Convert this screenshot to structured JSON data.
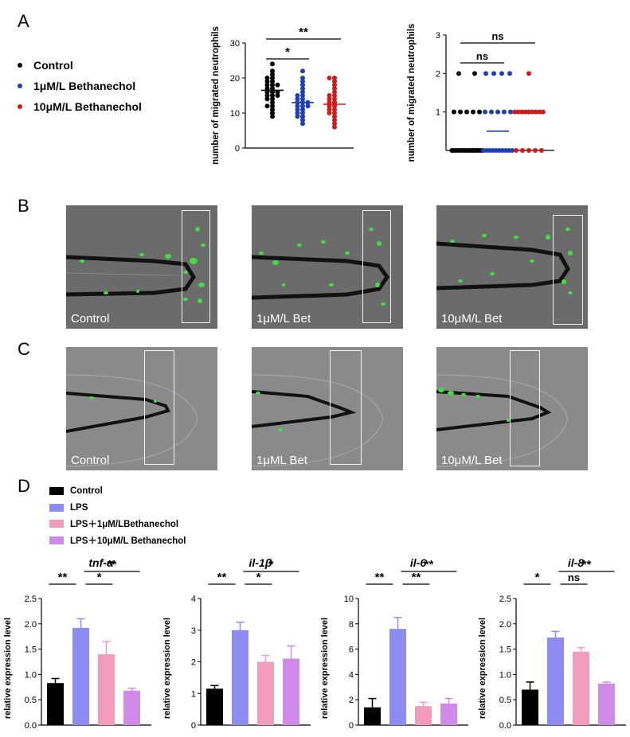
{
  "panels": {
    "a": "A",
    "b": "B",
    "c": "C",
    "d": "D"
  },
  "legend_a": [
    {
      "label": "Control",
      "color": "#000000"
    },
    {
      "label": "1μM/L Bethanechol",
      "color": "#1f3fb5"
    },
    {
      "label": "10μM/L Bethanechol",
      "color": "#d21818"
    }
  ],
  "legend_d": [
    {
      "label": "Control",
      "color": "#000000"
    },
    {
      "label": "LPS",
      "color": "#8c8cf2"
    },
    {
      "label": "LPS＋1μM/LBethanechol",
      "color": "#f29bbb"
    },
    {
      "label": "LPS＋10μM/L Bethanechol",
      "color": "#d08ae8"
    }
  ],
  "micro_b": [
    "Control",
    "1μM/L Bet",
    "10μM/L Bet"
  ],
  "micro_c": [
    "Control",
    "1μML Bet",
    "10μM/L Bet"
  ],
  "chart_data": [
    {
      "type": "scatter",
      "ylabel": "number of migrated neutrophils",
      "ylim": [
        0,
        30
      ],
      "yticks": [
        0,
        10,
        20,
        30
      ],
      "groups": [
        {
          "color": "#000000",
          "mean": 16.5,
          "values": [
            24,
            22,
            21,
            20,
            20,
            19,
            19,
            18,
            18,
            18,
            17,
            17,
            16,
            16,
            16,
            15,
            15,
            15,
            14,
            14,
            13,
            12,
            12,
            11,
            10,
            9
          ]
        },
        {
          "color": "#1f3fb5",
          "mean": 13,
          "values": [
            22,
            20,
            19,
            18,
            17,
            16,
            15,
            15,
            14,
            14,
            13,
            13,
            13,
            12,
            12,
            12,
            11,
            11,
            10,
            10,
            9,
            9,
            8,
            7
          ]
        },
        {
          "color": "#d21818",
          "mean": 12.5,
          "values": [
            20,
            20,
            19,
            18,
            17,
            16,
            15,
            15,
            14,
            14,
            13,
            13,
            12,
            12,
            11,
            11,
            10,
            10,
            9,
            8,
            7,
            6
          ]
        }
      ],
      "annotations": [
        {
          "text": "*",
          "from": 0,
          "to": 1
        },
        {
          "text": "**",
          "from": 0,
          "to": 2
        }
      ]
    },
    {
      "type": "scatter",
      "ylabel": "number of migrated neutrophils",
      "ylim": [
        0,
        3
      ],
      "yticks": [
        1,
        2,
        3
      ],
      "groups": [
        {
          "color": "#000000",
          "mean": 0,
          "counts": {
            "0": 14,
            "1": 5,
            "2": 2
          }
        },
        {
          "color": "#1f3fb5",
          "mean": 0.5,
          "counts": {
            "0": 10,
            "1": 5,
            "2": 4
          }
        },
        {
          "color": "#d21818",
          "mean": 1,
          "counts": {
            "0": 5,
            "1": 9,
            "2": 1
          }
        }
      ],
      "annotations": [
        {
          "text": "ns",
          "from": 0,
          "to": 1
        },
        {
          "text": "ns",
          "from": 0,
          "to": 2
        }
      ]
    },
    {
      "type": "bar",
      "title": "tnf-α",
      "ylabel": "relative expression level",
      "ylim": [
        0,
        2.5
      ],
      "yticks": [
        "0.0",
        "0.5",
        "1.0",
        "1.5",
        "2.0",
        "2.5"
      ],
      "values": [
        0.83,
        1.92,
        1.4,
        0.68
      ],
      "errors": [
        0.09,
        0.18,
        0.25,
        0.05
      ],
      "annotations": [
        {
          "text": "**",
          "from": 0,
          "to": 1
        },
        {
          "text": "*",
          "from": 1,
          "to": 2
        },
        {
          "text": "**",
          "from": 1,
          "to": 3
        }
      ]
    },
    {
      "type": "bar",
      "title": "il-1β",
      "ylabel": "relative expression level",
      "ylim": [
        0,
        4
      ],
      "yticks": [
        "0",
        "1",
        "2",
        "3",
        "4"
      ],
      "values": [
        1.15,
        3.0,
        2.0,
        2.1
      ],
      "errors": [
        0.1,
        0.25,
        0.2,
        0.4
      ],
      "annotations": [
        {
          "text": "**",
          "from": 0,
          "to": 1
        },
        {
          "text": "*",
          "from": 1,
          "to": 2
        },
        {
          "text": "*",
          "from": 1,
          "to": 3
        }
      ]
    },
    {
      "type": "bar",
      "title": "il-6",
      "ylabel": "relative expression level",
      "ylim": [
        0,
        10
      ],
      "yticks": [
        "0",
        "2",
        "4",
        "6",
        "8",
        "10"
      ],
      "values": [
        1.4,
        7.6,
        1.5,
        1.7
      ],
      "errors": [
        0.7,
        0.9,
        0.3,
        0.4
      ],
      "annotations": [
        {
          "text": "**",
          "from": 0,
          "to": 1
        },
        {
          "text": "**",
          "from": 1,
          "to": 2
        },
        {
          "text": "**",
          "from": 1,
          "to": 3
        }
      ]
    },
    {
      "type": "bar",
      "title": "il-8",
      "ylabel": "relative expression level",
      "ylim": [
        0,
        2.5
      ],
      "yticks": [
        "0.0",
        "0.5",
        "1.0",
        "1.5",
        "2.0",
        "2.5"
      ],
      "values": [
        0.7,
        1.73,
        1.45,
        0.82
      ],
      "errors": [
        0.15,
        0.12,
        0.08,
        0.03
      ],
      "annotations": [
        {
          "text": "*",
          "from": 0,
          "to": 1
        },
        {
          "text": "ns",
          "from": 1,
          "to": 2
        },
        {
          "text": "**",
          "from": 1,
          "to": 3
        }
      ]
    }
  ]
}
